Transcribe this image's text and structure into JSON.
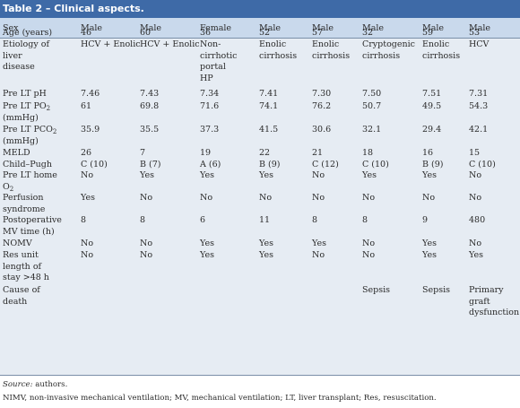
{
  "table": {
    "title": "Table 2 – Clinical aspects.",
    "header": {
      "label": "Sex",
      "patients": [
        "Male",
        "Male",
        "Female",
        "Male",
        "Male",
        "Male",
        "Male",
        "Male"
      ]
    },
    "rows": [
      {
        "label": [
          "Age (years)"
        ],
        "values": [
          [
            "46"
          ],
          [
            "60"
          ],
          [
            "36"
          ],
          [
            "52"
          ],
          [
            "57"
          ],
          [
            "32"
          ],
          [
            "59"
          ],
          [
            "53"
          ]
        ]
      },
      {
        "label": [
          "Etiology of",
          "liver",
          "disease"
        ],
        "values": [
          [
            "HCV + Enolic"
          ],
          [
            "HCV + Enolic"
          ],
          [
            "Non-",
            "cirrhotic",
            "portal",
            "HP"
          ],
          [
            "Enolic",
            "cirrhosis"
          ],
          [
            "Enolic",
            "cirrhosis"
          ],
          [
            "Cryptogenic",
            "cirrhosis"
          ],
          [
            "Enolic",
            "cirrhosis"
          ],
          [
            "HCV"
          ]
        ]
      },
      {
        "label": [
          "Pre LT pH"
        ],
        "values": [
          [
            "7.46"
          ],
          [
            "7.43"
          ],
          [
            "7.34"
          ],
          [
            "7.41"
          ],
          [
            "7.30"
          ],
          [
            "7.50"
          ],
          [
            "7.51"
          ],
          [
            "7.31"
          ]
        ]
      },
      {
        "label": [
          "Pre LT PO",
          "(mmHg)"
        ],
        "label_sub": "2",
        "values": [
          [
            "61"
          ],
          [
            "69.8"
          ],
          [
            "71.6"
          ],
          [
            "74.1"
          ],
          [
            "76.2"
          ],
          [
            "50.7"
          ],
          [
            "49.5"
          ],
          [
            "54.3"
          ]
        ]
      },
      {
        "label": [
          "Pre LT PCO",
          "(mmHg)"
        ],
        "label_sub": "2",
        "values": [
          [
            "35.9"
          ],
          [
            "35.5"
          ],
          [
            "37.3"
          ],
          [
            "41.5"
          ],
          [
            "30.6"
          ],
          [
            "32.1"
          ],
          [
            "29.4"
          ],
          [
            "42.1"
          ]
        ]
      },
      {
        "label": [
          "MELD"
        ],
        "values": [
          [
            "26"
          ],
          [
            "7"
          ],
          [
            "19"
          ],
          [
            "22"
          ],
          [
            "21"
          ],
          [
            "18"
          ],
          [
            "16"
          ],
          [
            "15"
          ]
        ]
      },
      {
        "label": [
          "Child–Pugh"
        ],
        "values": [
          [
            "C (10)"
          ],
          [
            "B (7)"
          ],
          [
            "A (6)"
          ],
          [
            "B (9)"
          ],
          [
            "C (12)"
          ],
          [
            "C (10)"
          ],
          [
            "B (9)"
          ],
          [
            "C (10)"
          ]
        ]
      },
      {
        "label": [
          "Pre LT home",
          "O"
        ],
        "label_sub": "2",
        "values": [
          [
            "No"
          ],
          [
            "Yes"
          ],
          [
            "Yes"
          ],
          [
            "Yes"
          ],
          [
            "No"
          ],
          [
            "Yes"
          ],
          [
            "Yes"
          ],
          [
            "No"
          ]
        ]
      },
      {
        "label": [
          "Perfusion",
          "syndrome"
        ],
        "values": [
          [
            "Yes"
          ],
          [
            "No"
          ],
          [
            "No"
          ],
          [
            "No"
          ],
          [
            "No"
          ],
          [
            "No"
          ],
          [
            "No"
          ],
          [
            "No"
          ]
        ]
      },
      {
        "label": [
          "Postoperative",
          "MV time (h)"
        ],
        "values": [
          [
            "8"
          ],
          [
            "8"
          ],
          [
            "6"
          ],
          [
            "11"
          ],
          [
            "8"
          ],
          [
            "8"
          ],
          [
            "9"
          ],
          [
            "480"
          ]
        ]
      },
      {
        "label": [
          "NOMV"
        ],
        "values": [
          [
            "No"
          ],
          [
            "No"
          ],
          [
            "Yes"
          ],
          [
            "Yes"
          ],
          [
            "Yes"
          ],
          [
            "No"
          ],
          [
            "Yes"
          ],
          [
            "No"
          ]
        ]
      },
      {
        "label": [
          "Res unit",
          "length of",
          "stay >48 h"
        ],
        "values": [
          [
            "No"
          ],
          [
            "No"
          ],
          [
            "Yes"
          ],
          [
            "Yes"
          ],
          [
            "No"
          ],
          [
            "No"
          ],
          [
            "Yes"
          ],
          [
            "Yes"
          ]
        ]
      },
      {
        "label": [
          "Cause of",
          "death"
        ],
        "values": [
          [],
          [],
          [],
          [],
          [],
          [
            "Sepsis"
          ],
          [
            "Sepsis"
          ],
          [
            "Primary",
            "graft",
            "dysfunction"
          ]
        ]
      }
    ],
    "source_label": "Source:",
    "source_text": " authors.",
    "abbreviations": "NIMV, non-invasive mechanical ventilation; MV, mechanical ventilation; LT, liver transplant; Res, resuscitation."
  },
  "colors": {
    "title_bg": "#3e6aa7",
    "header_bg": "#c9d9ec",
    "body_bg": "#e6ecf3",
    "rule": "#7a8fa8"
  }
}
